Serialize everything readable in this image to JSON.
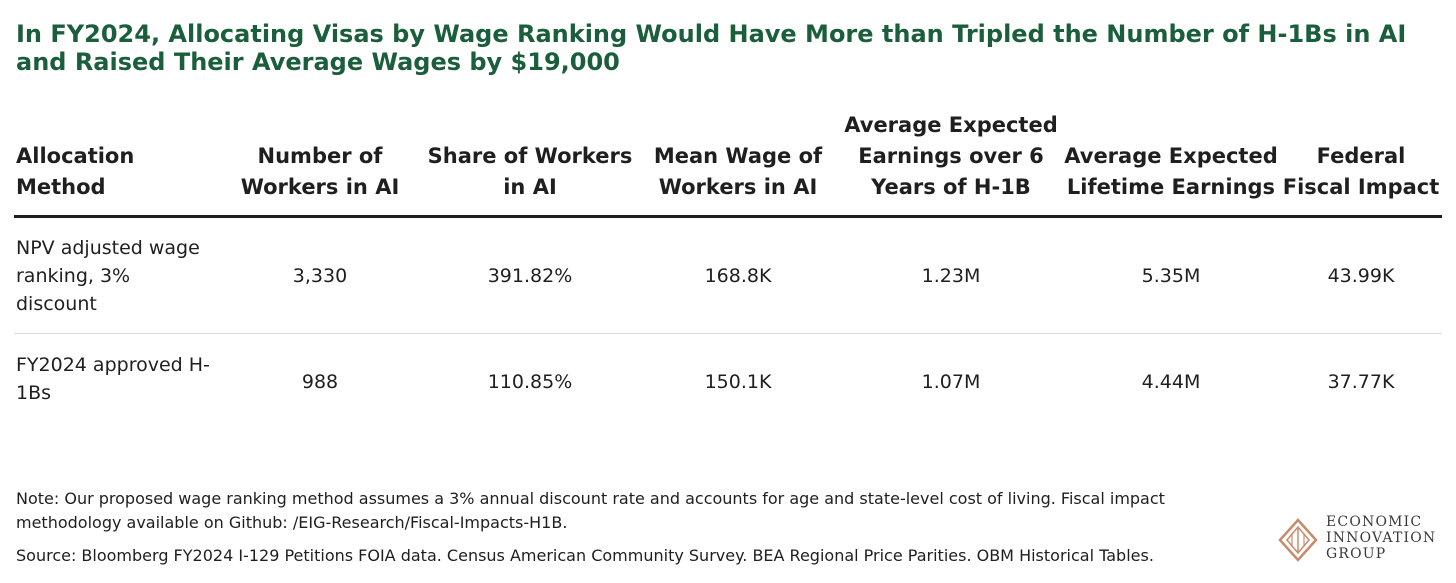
{
  "title": "In FY2024, Allocating Visas by Wage Ranking Would Have More than Tripled the Number of H-1Bs in AI and Raised Their Average Wages by $19,000",
  "table": {
    "headers": [
      "Allocation Method",
      "Number of Workers in AI",
      "Share of Workers in AI",
      "Mean Wage of Workers in AI",
      "Average Expected Earnings over 6 Years of H-1B",
      "Average Expected Lifetime Earnings",
      "Federal Fiscal Impact"
    ],
    "rows": [
      [
        "NPV adjusted wage ranking, 3% discount",
        "3,330",
        "391.82%",
        "168.8K",
        "1.23M",
        "5.35M",
        "43.99K"
      ],
      [
        "FY2024 approved H-1Bs",
        "988",
        "110.85%",
        "150.1K",
        "1.07M",
        "4.44M",
        "37.77K"
      ]
    ]
  },
  "note": "Note: Our proposed wage ranking method assumes a 3% annual discount rate and accounts for age and state-level cost of living. Fiscal impact methodology available on Github: /EIG-Research/Fiscal-Impacts-H1B.",
  "source": "Source: Bloomberg FY2024 I-129 Petitions FOIA data. Census American Community Survey. BEA Regional Price Parities. OBM Historical Tables.",
  "logo": {
    "line1": "ECONOMIC",
    "line2": "INNOVATION",
    "line3": "GROUP"
  },
  "colors": {
    "title": "#1b5e3b",
    "text": "#1f1f1f",
    "logo_mark": "#c98b6b"
  }
}
